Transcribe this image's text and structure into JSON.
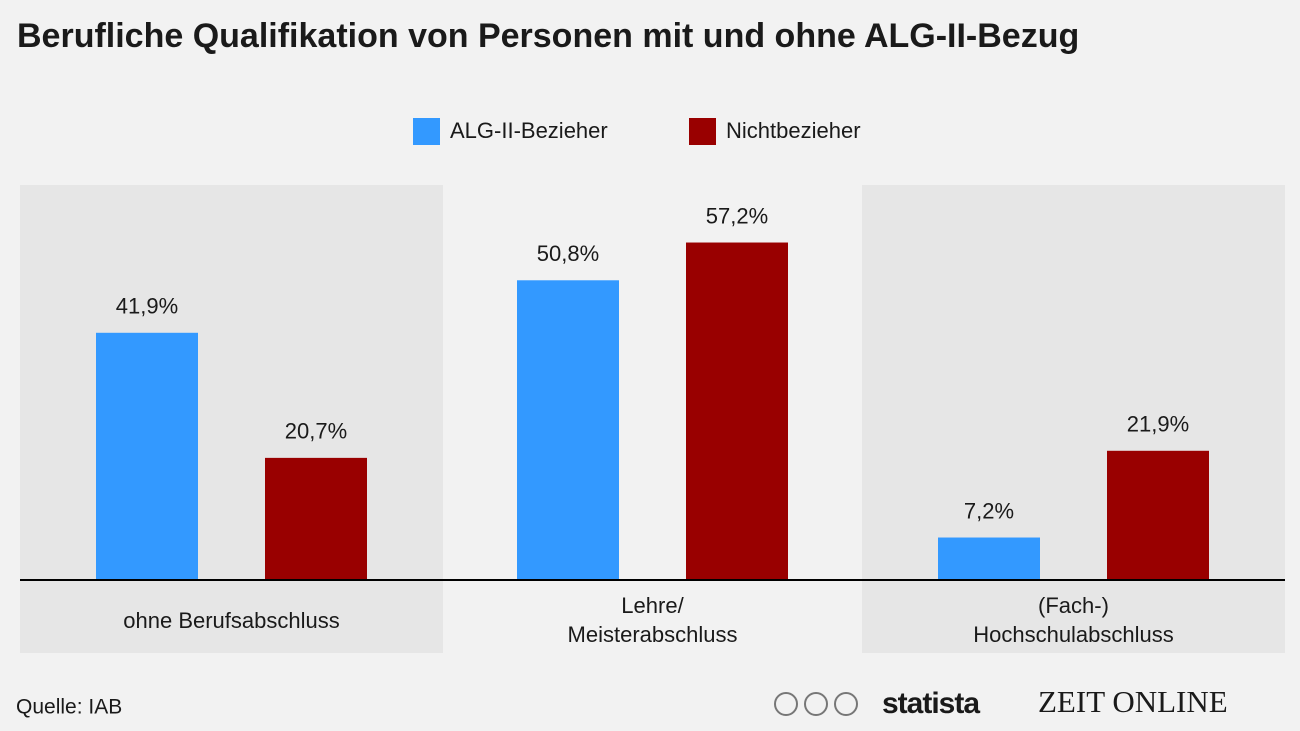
{
  "chart_data": {
    "type": "bar",
    "title": "Berufliche Qualifikation von Personen mit und ohne ALG-II-Bezug",
    "categories": [
      "ohne Berufsabschluss",
      "Lehre/\nMeisterabschluss",
      "(Fach-)\nHochschulabschluss"
    ],
    "series": [
      {
        "name": "ALG-II-Bezieher",
        "color": "#3399ff",
        "values": [
          41.9,
          50.8,
          7.2
        ],
        "value_labels": [
          "41,9%",
          "50,8%",
          "7,2%"
        ]
      },
      {
        "name": "Nichtbezieher",
        "color": "#990000",
        "values": [
          20.7,
          57.2,
          21.9
        ],
        "value_labels": [
          "20,7%",
          "57,2%",
          "21,9%"
        ]
      }
    ],
    "legend": "top"
  },
  "footer": {
    "source": "Quelle: IAB",
    "logos": [
      "statista",
      "ZEIT ONLINE"
    ]
  }
}
